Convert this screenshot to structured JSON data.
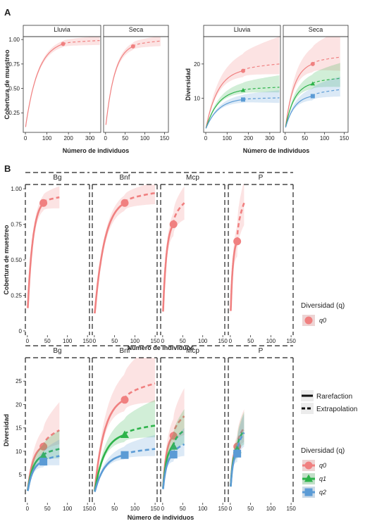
{
  "figure": {
    "panel_a_label": "A",
    "panel_b_label": "B"
  },
  "colors": {
    "q0": "#f08080",
    "q1": "#2db34a",
    "q2": "#5b9bd5",
    "strip": "#ffffff",
    "frame": "#222222"
  },
  "chart_data": [
    {
      "id": "A-coverage",
      "type": "line",
      "facets": [
        "Lluvia",
        "Seca"
      ],
      "xlabel": "Número de individuos",
      "ylabel": "Cobertura de muestreo",
      "yticks": [
        "0.25",
        "0.50",
        "0.75",
        "1.00"
      ],
      "ylim": [
        0.05,
        1.03
      ],
      "panels": [
        {
          "facet": "Lluvia",
          "xlim": [
            -10,
            350
          ],
          "xticks": [
            "0",
            "100",
            "200",
            "300"
          ],
          "series": [
            {
              "q": "q0",
              "observed_x": 175,
              "observed_y": 0.955,
              "start_x": 1,
              "start_y": 0.09,
              "end_x": 345,
              "end_y": 0.99,
              "band": 0.035
            }
          ]
        },
        {
          "facet": "Seca",
          "xlim": [
            -5,
            160
          ],
          "xticks": [
            "0",
            "50",
            "100",
            "150"
          ],
          "series": [
            {
              "q": "q0",
              "observed_x": 70,
              "observed_y": 0.93,
              "start_x": 1,
              "start_y": 0.09,
              "end_x": 140,
              "end_y": 0.985,
              "band": 0.04
            }
          ]
        }
      ]
    },
    {
      "id": "A-diversity",
      "type": "line",
      "facets": [
        "Lluvia",
        "Seca"
      ],
      "xlabel": "Número de individuos",
      "ylabel": "Diversidad",
      "yticks": [
        "10",
        "20"
      ],
      "ylim": [
        0,
        28
      ],
      "panels": [
        {
          "facet": "Lluvia",
          "xlim": [
            -10,
            350
          ],
          "xticks": [
            "0",
            "100",
            "200",
            "300"
          ],
          "series": [
            {
              "q": "q0",
              "observed_x": 175,
              "observed_y": 18,
              "start_x": 1,
              "start_y": 1,
              "end_x": 345,
              "end_y": 20,
              "band_lo": 3,
              "band_hi": 8
            },
            {
              "q": "q1",
              "observed_x": 175,
              "observed_y": 12.3,
              "start_x": 1,
              "start_y": 1,
              "end_x": 345,
              "end_y": 13.2,
              "band_lo": 1.5,
              "band_hi": 3.5
            },
            {
              "q": "q2",
              "observed_x": 175,
              "observed_y": 9.6,
              "start_x": 1,
              "start_y": 1,
              "end_x": 345,
              "end_y": 10.1,
              "band_lo": 1.5,
              "band_hi": 2.2
            }
          ]
        },
        {
          "facet": "Seca",
          "xlim": [
            -5,
            160
          ],
          "xticks": [
            "0",
            "50",
            "100",
            "150"
          ],
          "series": [
            {
              "q": "q0",
              "observed_x": 70,
              "observed_y": 20,
              "start_x": 1,
              "start_y": 1,
              "end_x": 140,
              "end_y": 22,
              "band_lo": 4,
              "band_hi": 8
            },
            {
              "q": "q1",
              "observed_x": 70,
              "observed_y": 14.2,
              "start_x": 1,
              "start_y": 1,
              "end_x": 140,
              "end_y": 15.8,
              "band_lo": 2.5,
              "band_hi": 4.5
            },
            {
              "q": "q2",
              "observed_x": 70,
              "observed_y": 10.6,
              "start_x": 1,
              "start_y": 1,
              "end_x": 140,
              "end_y": 12.5,
              "band_lo": 2,
              "band_hi": 3.8
            }
          ]
        }
      ]
    },
    {
      "id": "B-coverage",
      "type": "line",
      "facets": [
        "Bg",
        "Bnf",
        "Mcp",
        "P"
      ],
      "xlabel": "Número de individuos",
      "ylabel": "Cobertura de muestreo",
      "yticks": [
        "0",
        "0.25",
        "0.50",
        "0.75",
        "1.00"
      ],
      "ylim": [
        -0.03,
        1.03
      ],
      "xticks": [
        "0",
        "50",
        "100",
        "150"
      ],
      "xlim": [
        -5,
        155
      ],
      "panels": [
        {
          "facet": "Bg",
          "series": [
            {
              "q": "q0",
              "observed_x": 40,
              "observed_y": 0.9,
              "start_x": 1,
              "start_y": 0.1,
              "end_x": 80,
              "end_y": 0.94,
              "band": 0.06
            }
          ]
        },
        {
          "facet": "Bnf",
          "series": [
            {
              "q": "q0",
              "observed_x": 75,
              "observed_y": 0.9,
              "start_x": 1,
              "start_y": 0.09,
              "end_x": 150,
              "end_y": 0.97,
              "band": 0.06
            }
          ]
        },
        {
          "facet": "Mcp",
          "series": [
            {
              "q": "q0",
              "observed_x": 27,
              "observed_y": 0.75,
              "start_x": 1,
              "start_y": 0.06,
              "end_x": 54,
              "end_y": 0.9,
              "band": 0.09
            }
          ]
        },
        {
          "facet": "P",
          "series": [
            {
              "q": "q0",
              "observed_x": 17,
              "observed_y": 0.63,
              "start_x": 1,
              "start_y": 0.04,
              "end_x": 34,
              "end_y": 0.9,
              "band": 0.12
            }
          ]
        }
      ],
      "legend": {
        "title": "Diversidad (q)",
        "items": [
          "q0"
        ]
      }
    },
    {
      "id": "B-diversity",
      "type": "line",
      "facets": [
        "Bg",
        "Bnf",
        "Mcp",
        "P"
      ],
      "xlabel": "Número de individuos",
      "ylabel": "Diversidad",
      "yticks": [
        "5",
        "10",
        "15",
        "20",
        "25"
      ],
      "ylim": [
        -1,
        30
      ],
      "xticks": [
        "0",
        "50",
        "100",
        "150"
      ],
      "xlim": [
        -5,
        155
      ],
      "panels": [
        {
          "facet": "Bg",
          "series": [
            {
              "q": "q0",
              "observed_x": 40,
              "observed_y": 11,
              "start_x": 1,
              "start_y": 1,
              "end_x": 80,
              "end_y": 14.5,
              "band_lo": 3,
              "band_hi": 6
            },
            {
              "q": "q1",
              "observed_x": 40,
              "observed_y": 9,
              "start_x": 1,
              "start_y": 1,
              "end_x": 80,
              "end_y": 10.5,
              "band_lo": 2,
              "band_hi": 4
            },
            {
              "q": "q2",
              "observed_x": 40,
              "observed_y": 7.8,
              "start_x": 1,
              "start_y": 1,
              "end_x": 80,
              "end_y": 9,
              "band_lo": 2,
              "band_hi": 3.5
            }
          ]
        },
        {
          "facet": "Bnf",
          "series": [
            {
              "q": "q0",
              "observed_x": 75,
              "observed_y": 21,
              "start_x": 1,
              "start_y": 1,
              "end_x": 150,
              "end_y": 24.5,
              "band_lo": 4,
              "band_hi": 9
            },
            {
              "q": "q1",
              "observed_x": 75,
              "observed_y": 13.5,
              "start_x": 1,
              "start_y": 1,
              "end_x": 150,
              "end_y": 15.5,
              "band_lo": 2.5,
              "band_hi": 5.5
            },
            {
              "q": "q2",
              "observed_x": 75,
              "observed_y": 9.2,
              "start_x": 1,
              "start_y": 1,
              "end_x": 150,
              "end_y": 10.5,
              "band_lo": 1.5,
              "band_hi": 3
            }
          ]
        },
        {
          "facet": "Mcp",
          "series": [
            {
              "q": "q0",
              "observed_x": 27,
              "observed_y": 13.3,
              "start_x": 1,
              "start_y": 1,
              "end_x": 54,
              "end_y": 17.5,
              "band_lo": 4,
              "band_hi": 6
            },
            {
              "q": "q1",
              "observed_x": 27,
              "observed_y": 11,
              "start_x": 1,
              "start_y": 1,
              "end_x": 54,
              "end_y": 14.5,
              "band_lo": 3,
              "band_hi": 4.5
            },
            {
              "q": "q2",
              "observed_x": 27,
              "observed_y": 9.3,
              "start_x": 1,
              "start_y": 1,
              "end_x": 54,
              "end_y": 11.5,
              "band_lo": 2.5,
              "band_hi": 3.5
            }
          ]
        },
        {
          "facet": "P",
          "series": [
            {
              "q": "q0",
              "observed_x": 17,
              "observed_y": 11,
              "start_x": 1,
              "start_y": 1,
              "end_x": 34,
              "end_y": 15,
              "band_lo": 3,
              "band_hi": 4
            },
            {
              "q": "q1",
              "observed_x": 17,
              "observed_y": 10.3,
              "start_x": 1,
              "start_y": 1,
              "end_x": 34,
              "end_y": 14.5,
              "band_lo": 3,
              "band_hi": 4
            },
            {
              "q": "q2",
              "observed_x": 17,
              "observed_y": 9.5,
              "start_x": 1,
              "start_y": 1,
              "end_x": 34,
              "end_y": 14,
              "band_lo": 3,
              "band_hi": 4
            }
          ]
        }
      ],
      "legend": {
        "linetype_items": [
          "Rarefaction",
          "Extrapolation"
        ],
        "title": "Diversidad (q)",
        "items": [
          "q0",
          "q1",
          "q2"
        ]
      }
    }
  ]
}
